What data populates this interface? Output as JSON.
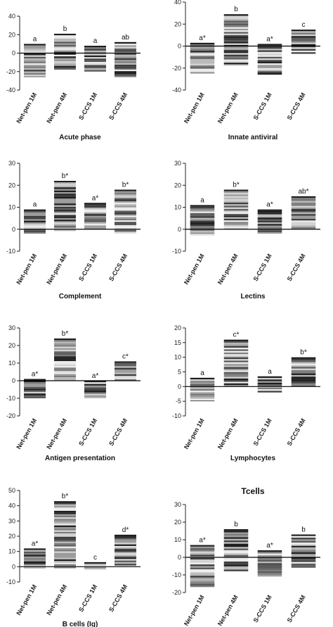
{
  "chart_data": [
    {
      "type": "bar",
      "title": "Acute phase",
      "categories": [
        "Net-pen 1M",
        "Net-pen 4M",
        "S-CCS 1M",
        "S-CCS 4M"
      ],
      "ylim": [
        -40,
        40
      ],
      "yticks": [
        "-40",
        "-20",
        "0",
        "20",
        "40"
      ],
      "bars": [
        {
          "low": -26,
          "high": 10,
          "label": "a"
        },
        {
          "low": -18,
          "high": 21,
          "label": "b"
        },
        {
          "low": -20,
          "high": 8,
          "label": "a"
        },
        {
          "low": -26,
          "high": 12,
          "label": "ab"
        }
      ]
    },
    {
      "type": "bar",
      "title": "Innate antiviral",
      "categories": [
        "Net-pen 1M",
        "Net-pen 4M",
        "S-CCS 1M",
        "S-CCS 4M"
      ],
      "ylim": [
        -40,
        40
      ],
      "yticks": [
        "-40",
        "-20",
        "0",
        "20",
        "40"
      ],
      "bars": [
        {
          "low": -25,
          "high": 3,
          "label": "a*"
        },
        {
          "low": -18,
          "high": 29,
          "label": "b"
        },
        {
          "low": -26,
          "high": 2,
          "label": "a*"
        },
        {
          "low": -7,
          "high": 15,
          "label": "c"
        }
      ]
    },
    {
      "type": "bar",
      "title": "Complement",
      "categories": [
        "Net-pen 1M",
        "Net-pen 4M",
        "S-CCS 1M",
        "S-CCS 4M"
      ],
      "ylim": [
        -10,
        30
      ],
      "yticks": [
        "-10",
        "0",
        "10",
        "20",
        "30"
      ],
      "bars": [
        {
          "low": -2,
          "high": 9,
          "label": "a"
        },
        {
          "low": -1,
          "high": 22,
          "label": "b*"
        },
        {
          "low": 0,
          "high": 12,
          "label": "a*"
        },
        {
          "low": -2,
          "high": 18,
          "label": "b*"
        }
      ]
    },
    {
      "type": "bar",
      "title": "Lectins",
      "categories": [
        "Net-pen 1M",
        "Net-pen 4M",
        "S-CCS 1M",
        "S-CCS 4M"
      ],
      "ylim": [
        -10,
        30
      ],
      "yticks": [
        "-10",
        "0",
        "10",
        "20",
        "30"
      ],
      "bars": [
        {
          "low": -3,
          "high": 11,
          "label": "a"
        },
        {
          "low": 0,
          "high": 18,
          "label": "b*"
        },
        {
          "low": -2,
          "high": 9,
          "label": "a*"
        },
        {
          "low": 0,
          "high": 15,
          "label": "ab*"
        }
      ]
    },
    {
      "type": "bar",
      "title": "Antigen presentation",
      "categories": [
        "Net-pen 1M",
        "Net-pen 4M",
        "S-CCS 1M",
        "S-CCS 4M"
      ],
      "ylim": [
        -20,
        30
      ],
      "yticks": [
        "-20",
        "-10",
        "0",
        "10",
        "20",
        "30"
      ],
      "bars": [
        {
          "low": -10,
          "high": 1,
          "label": "a*"
        },
        {
          "low": 0,
          "high": 24,
          "label": "b*"
        },
        {
          "low": -10,
          "high": 0,
          "label": "a*"
        },
        {
          "low": 0,
          "high": 11,
          "label": "c*"
        }
      ]
    },
    {
      "type": "bar",
      "title": "Lymphocytes",
      "categories": [
        "Net-pen 1M",
        "Net-pen 4M",
        "S-CCS 1M",
        "S-CCS 4M"
      ],
      "ylim": [
        -10,
        20
      ],
      "yticks": [
        "-10",
        "-5",
        "0",
        "5",
        "10",
        "15",
        "20"
      ],
      "bars": [
        {
          "low": -5,
          "high": 3,
          "label": "a"
        },
        {
          "low": 0,
          "high": 16,
          "label": "c*"
        },
        {
          "low": -2,
          "high": 3.5,
          "label": "a"
        },
        {
          "low": 0,
          "high": 10,
          "label": "b*"
        }
      ]
    },
    {
      "type": "bar",
      "title": "B cells (Ig)",
      "categories": [
        "Net-pen 1M",
        "Net-pen 4M",
        "S-CCS 1M",
        "S-CCS 4M"
      ],
      "ylim": [
        -10,
        50
      ],
      "yticks": [
        "-10",
        "0",
        "10",
        "20",
        "30",
        "40",
        "50"
      ],
      "bars": [
        {
          "low": -1,
          "high": 12,
          "label": "a*"
        },
        {
          "low": -1,
          "high": 43,
          "label": "b*"
        },
        {
          "low": -2,
          "high": 3,
          "label": "c"
        },
        {
          "low": 0,
          "high": 21,
          "label": "d*"
        }
      ]
    },
    {
      "type": "bar",
      "title": "Tcells",
      "categories": [
        "Net-pen 1M",
        "Net-pen 4M",
        "S-CCS 1M",
        "S-CCS 4M"
      ],
      "ylim": [
        -20,
        30
      ],
      "yticks": [
        "-20",
        "-10",
        "0",
        "10",
        "20",
        "30"
      ],
      "bars": [
        {
          "low": -17,
          "high": 7,
          "label": "a*"
        },
        {
          "low": -8,
          "high": 16,
          "label": "b"
        },
        {
          "low": -11,
          "high": 4,
          "label": "a*"
        },
        {
          "low": -6,
          "high": 13,
          "label": "b"
        }
      ]
    }
  ]
}
